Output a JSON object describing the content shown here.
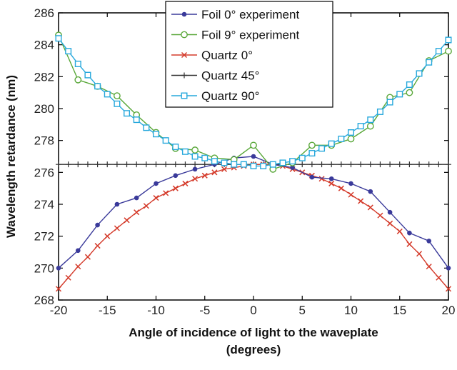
{
  "chart_data": {
    "type": "line",
    "title": "",
    "xlabel_line1": "Angle of incidence of light to the waveplate",
    "xlabel_line2": "(degrees)",
    "ylabel": "Wavelength retardance (nm)",
    "xlim": [
      -20,
      20
    ],
    "ylim": [
      268,
      286
    ],
    "xticks": [
      -20,
      -15,
      -10,
      -5,
      0,
      5,
      10,
      15,
      20
    ],
    "yticks": [
      268,
      270,
      272,
      274,
      276,
      278,
      280,
      282,
      284,
      286
    ],
    "grid": false,
    "legend_position": "top-center",
    "series": [
      {
        "name": "Foil 0° experiment",
        "color": "#3a3a9a",
        "marker": "dot",
        "x": [
          -20,
          -18,
          -16,
          -14,
          -12,
          -10,
          -8,
          -6,
          -4,
          -2,
          0,
          2,
          4,
          6,
          8,
          10,
          12,
          14,
          16,
          18,
          20
        ],
        "y": [
          270.0,
          271.1,
          272.7,
          274.0,
          274.4,
          275.3,
          275.8,
          276.2,
          276.5,
          276.9,
          277.0,
          276.5,
          276.3,
          275.7,
          275.6,
          275.3,
          274.8,
          273.5,
          272.2,
          271.7,
          270.0
        ]
      },
      {
        "name": "Foil 9° experiment",
        "color": "#5aa83a",
        "marker": "circle",
        "x": [
          -20,
          -18,
          -16,
          -14,
          -12,
          -10,
          -8,
          -6,
          -4,
          -2,
          0,
          2,
          4,
          6,
          8,
          10,
          12,
          14,
          16,
          18,
          20
        ],
        "y": [
          284.6,
          281.8,
          281.4,
          280.8,
          279.6,
          278.5,
          277.5,
          277.4,
          276.9,
          276.8,
          277.7,
          276.2,
          276.6,
          277.7,
          277.7,
          278.1,
          278.9,
          280.7,
          281.0,
          283.0,
          283.6
        ]
      },
      {
        "name": "Quartz 0°",
        "color": "#d43a2a",
        "marker": "x",
        "x": [
          -20,
          -19,
          -18,
          -17,
          -16,
          -15,
          -14,
          -13,
          -12,
          -11,
          -10,
          -9,
          -8,
          -7,
          -6,
          -5,
          -4,
          -3,
          -2,
          -1,
          0,
          1,
          2,
          3,
          4,
          5,
          6,
          7,
          8,
          9,
          10,
          11,
          12,
          13,
          14,
          15,
          16,
          17,
          18,
          19,
          20
        ],
        "y": [
          268.7,
          269.4,
          270.1,
          270.7,
          271.4,
          272.0,
          272.5,
          273.0,
          273.5,
          273.9,
          274.4,
          274.7,
          275.0,
          275.3,
          275.6,
          275.8,
          276.0,
          276.2,
          276.3,
          276.4,
          276.5,
          276.5,
          276.5,
          276.4,
          276.2,
          276.0,
          275.8,
          275.6,
          275.3,
          275.0,
          274.6,
          274.2,
          273.8,
          273.3,
          272.8,
          272.3,
          271.5,
          270.9,
          270.1,
          269.4,
          268.7
        ]
      },
      {
        "name": "Quartz 45°",
        "color": "#333333",
        "marker": "plus",
        "x": [
          -20,
          -19,
          -18,
          -17,
          -16,
          -15,
          -14,
          -13,
          -12,
          -11,
          -10,
          -9,
          -8,
          -7,
          -6,
          -5,
          -4,
          -3,
          -2,
          -1,
          0,
          1,
          2,
          3,
          4,
          5,
          6,
          7,
          8,
          9,
          10,
          11,
          12,
          13,
          14,
          15,
          16,
          17,
          18,
          19,
          20
        ],
        "y": [
          276.5,
          276.5,
          276.5,
          276.5,
          276.5,
          276.5,
          276.5,
          276.5,
          276.5,
          276.5,
          276.5,
          276.5,
          276.5,
          276.5,
          276.5,
          276.5,
          276.5,
          276.5,
          276.5,
          276.5,
          276.5,
          276.5,
          276.5,
          276.5,
          276.5,
          276.5,
          276.5,
          276.5,
          276.5,
          276.5,
          276.5,
          276.5,
          276.5,
          276.5,
          276.5,
          276.5,
          276.5,
          276.5,
          276.5,
          276.5,
          276.5
        ]
      },
      {
        "name": "Quartz 90°",
        "color": "#27a8dc",
        "marker": "square",
        "x": [
          -20,
          -19,
          -18,
          -17,
          -16,
          -15,
          -14,
          -13,
          -12,
          -11,
          -10,
          -9,
          -8,
          -7,
          -6,
          -5,
          -4,
          -3,
          -2,
          -1,
          0,
          1,
          2,
          3,
          4,
          5,
          6,
          7,
          8,
          9,
          10,
          11,
          12,
          13,
          14,
          15,
          16,
          17,
          18,
          19,
          20
        ],
        "y": [
          284.4,
          283.6,
          282.8,
          282.1,
          281.4,
          280.9,
          280.3,
          279.7,
          279.3,
          278.8,
          278.4,
          278.0,
          277.6,
          277.3,
          277.0,
          276.9,
          276.7,
          276.6,
          276.5,
          276.5,
          276.4,
          276.4,
          276.5,
          276.6,
          276.7,
          276.9,
          277.2,
          277.5,
          277.8,
          278.1,
          278.5,
          278.9,
          279.3,
          279.8,
          280.4,
          280.9,
          281.5,
          282.2,
          282.9,
          283.6,
          284.3
        ]
      }
    ]
  }
}
